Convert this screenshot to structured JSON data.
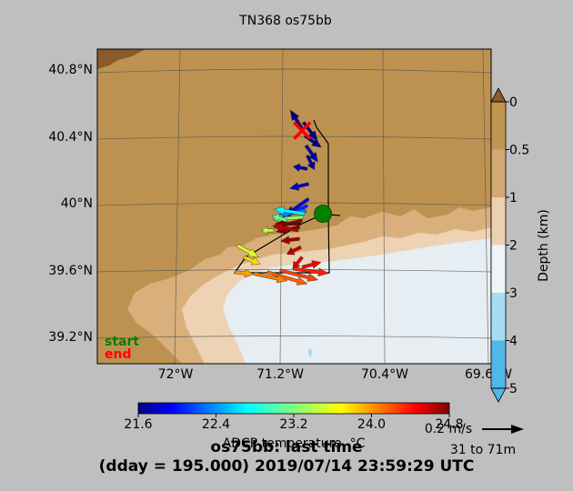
{
  "chart_data": {
    "type": "map",
    "title": "TN368 os75bb",
    "longitude_ticks": [
      "72°W",
      "71.2°W",
      "70.4°W",
      "69.6°W"
    ],
    "latitude_ticks": [
      "40.8°N",
      "40.4°N",
      "40°N",
      "39.6°N",
      "39.2°N"
    ],
    "legend": {
      "start_label": "start",
      "end_label": "end",
      "start_color": "#008000",
      "end_color": "#ff0000"
    },
    "colorbar": {
      "label": "ADCP temperature, °C",
      "ticks": [
        "21.6",
        "22.4",
        "23.2",
        "24.0",
        "24.8"
      ],
      "range": [
        21.6,
        24.8
      ],
      "colormap": "jet"
    },
    "depth_bar": {
      "label": "Depth (km)",
      "ticks": [
        "0",
        "0.5",
        "1",
        "2",
        "3",
        "4",
        "5"
      ],
      "colors": [
        "#8b5a2b",
        "#c19552",
        "#d2a974",
        "#ebd0b2",
        "#eef4f8",
        "#a8dcf4",
        "#4fb8e8"
      ]
    },
    "scale_vector": {
      "speed_label": "0.2 m/s",
      "depth_range_label": "31 to 71m"
    },
    "subtitle_line1": "os75bb: last time",
    "subtitle_line2": "(dday = 195.000) 2019/07/14 23:59:29 UTC",
    "track": {
      "start": {
        "lon": -70.87,
        "lat": 39.95
      },
      "end": {
        "lon": -71.03,
        "lat": 40.45
      }
    },
    "vectors": [
      {
        "lon": -71.02,
        "lat": 40.5,
        "u": 0.06,
        "v": -0.08,
        "temp": 21.6
      },
      {
        "lon": -71.03,
        "lat": 40.46,
        "u": -0.05,
        "v": 0.08,
        "temp": 21.6
      },
      {
        "lon": -71.01,
        "lat": 40.42,
        "u": 0.07,
        "v": -0.05,
        "temp": 21.65
      },
      {
        "lon": -71.0,
        "lat": 40.36,
        "u": 0.05,
        "v": -0.07,
        "temp": 21.7
      },
      {
        "lon": -70.99,
        "lat": 40.3,
        "u": 0.03,
        "v": -0.06,
        "temp": 21.7
      },
      {
        "lon": -70.99,
        "lat": 40.22,
        "u": -0.06,
        "v": 0.01,
        "temp": 21.75
      },
      {
        "lon": -70.98,
        "lat": 40.13,
        "u": -0.08,
        "v": -0.02,
        "temp": 21.8
      },
      {
        "lon": -70.98,
        "lat": 40.04,
        "u": -0.1,
        "v": -0.07,
        "temp": 21.9
      },
      {
        "lon": -70.99,
        "lat": 40.0,
        "u": -0.12,
        "v": -0.06,
        "temp": 22.1
      },
      {
        "lon": -71.0,
        "lat": 39.97,
        "u": -0.12,
        "v": -0.02,
        "temp": 22.4
      },
      {
        "lon": -71.01,
        "lat": 39.95,
        "u": -0.13,
        "v": 0.02,
        "temp": 22.8
      },
      {
        "lon": -71.02,
        "lat": 39.93,
        "u": -0.13,
        "v": -0.01,
        "temp": 23.3
      },
      {
        "lon": -71.03,
        "lat": 39.91,
        "u": -0.12,
        "v": -0.03,
        "temp": 24.7
      },
      {
        "lon": -71.04,
        "lat": 39.89,
        "u": -0.11,
        "v": 0.0,
        "temp": 24.8
      },
      {
        "lon": -71.05,
        "lat": 39.87,
        "u": -0.1,
        "v": -0.02,
        "temp": 24.8
      },
      {
        "lon": -71.06,
        "lat": 39.85,
        "u": -0.11,
        "v": 0.02,
        "temp": 24.6
      },
      {
        "lon": -71.05,
        "lat": 39.8,
        "u": -0.08,
        "v": -0.01,
        "temp": 24.7
      },
      {
        "lon": -71.04,
        "lat": 39.75,
        "u": -0.06,
        "v": -0.03,
        "temp": 24.6
      },
      {
        "lon": -71.03,
        "lat": 39.69,
        "u": -0.04,
        "v": -0.05,
        "temp": 24.5
      },
      {
        "lon": -71.03,
        "lat": 39.63,
        "u": 0.08,
        "v": 0.02,
        "temp": 24.4
      },
      {
        "lon": -71.1,
        "lat": 39.62,
        "u": 0.15,
        "v": -0.02,
        "temp": 24.3
      },
      {
        "lon": -71.2,
        "lat": 39.61,
        "u": 0.16,
        "v": -0.04,
        "temp": 24.2
      },
      {
        "lon": -71.3,
        "lat": 39.6,
        "u": 0.17,
        "v": -0.05,
        "temp": 24.1
      },
      {
        "lon": -71.4,
        "lat": 39.59,
        "u": 0.14,
        "v": -0.03,
        "temp": 24.0
      },
      {
        "lon": -71.55,
        "lat": 39.6,
        "u": 0.08,
        "v": -0.01,
        "temp": 23.9
      },
      {
        "lon": -71.48,
        "lat": 39.69,
        "u": 0.07,
        "v": -0.03,
        "temp": 23.7
      },
      {
        "lon": -71.53,
        "lat": 39.76,
        "u": 0.09,
        "v": -0.05,
        "temp": 23.5
      },
      {
        "lon": -71.25,
        "lat": 39.85,
        "u": -0.05,
        "v": 0.0,
        "temp": 23.4
      },
      {
        "lon": -71.15,
        "lat": 39.91,
        "u": -0.06,
        "v": 0.02,
        "temp": 23.1
      }
    ]
  }
}
